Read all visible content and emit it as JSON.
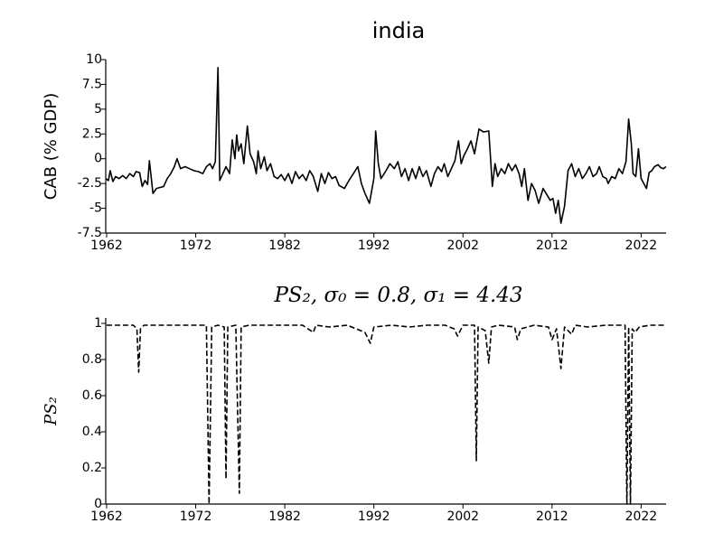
{
  "chart_data": [
    {
      "type": "line",
      "title": "india",
      "ylabel": "CAB (% GDP)",
      "color": "#000000",
      "linestyle": "solid",
      "x": [
        1961.9,
        1962.2,
        1962.4,
        1962.7,
        1963.0,
        1963.4,
        1963.8,
        1964.2,
        1964.6,
        1965.0,
        1965.3,
        1965.7,
        1966.0,
        1966.3,
        1966.6,
        1966.8,
        1967.2,
        1967.6,
        1968.0,
        1968.4,
        1968.8,
        1969.2,
        1969.6,
        1969.9,
        1970.3,
        1970.8,
        1971.3,
        1971.8,
        1972.3,
        1972.8,
        1973.2,
        1973.6,
        1973.9,
        1974.2,
        1974.5,
        1974.7,
        1975.0,
        1975.4,
        1975.8,
        1976.1,
        1976.4,
        1976.6,
        1976.8,
        1977.1,
        1977.4,
        1977.8,
        1978.1,
        1978.5,
        1978.8,
        1979.0,
        1979.3,
        1979.7,
        1980.0,
        1980.4,
        1980.8,
        1981.2,
        1981.6,
        1982.0,
        1982.4,
        1982.8,
        1983.2,
        1983.6,
        1984.0,
        1984.4,
        1984.8,
        1985.2,
        1985.7,
        1986.1,
        1986.5,
        1986.9,
        1987.3,
        1987.7,
        1988.1,
        1988.7,
        1989.2,
        1989.7,
        1990.2,
        1990.6,
        1991.0,
        1991.5,
        1992.0,
        1992.2,
        1992.5,
        1992.8,
        1993.3,
        1993.8,
        1994.3,
        1994.7,
        1995.1,
        1995.5,
        1995.9,
        1996.3,
        1996.7,
        1997.1,
        1997.5,
        1997.9,
        1998.4,
        1998.8,
        1999.2,
        1999.6,
        1999.9,
        2000.3,
        2000.7,
        2001.1,
        2001.5,
        2001.8,
        2002.1,
        2002.5,
        2002.9,
        2003.3,
        2003.8,
        2004.3,
        2004.9,
        2005.3,
        2005.6,
        2005.9,
        2006.3,
        2006.7,
        2007.1,
        2007.5,
        2007.9,
        2008.3,
        2008.6,
        2008.9,
        2009.3,
        2009.7,
        2010.1,
        2010.5,
        2011.0,
        2011.4,
        2011.8,
        2012.1,
        2012.4,
        2012.7,
        2013.0,
        2013.4,
        2013.8,
        2014.2,
        2014.6,
        2015.0,
        2015.4,
        2015.8,
        2016.2,
        2016.6,
        2017.0,
        2017.3,
        2017.7,
        2018.1,
        2018.3,
        2018.7,
        2019.1,
        2019.5,
        2019.9,
        2020.3,
        2020.6,
        2020.9,
        2021.1,
        2021.4,
        2021.7,
        2022.0,
        2022.3,
        2022.6,
        2022.9,
        2023.2,
        2023.5,
        2023.9,
        2024.2,
        2024.5,
        2024.8
      ],
      "values": [
        -2.0,
        -2.2,
        -1.2,
        -2.3,
        -1.8,
        -2.0,
        -1.7,
        -2.0,
        -1.5,
        -1.8,
        -1.3,
        -1.4,
        -2.8,
        -2.2,
        -2.6,
        -0.2,
        -3.5,
        -3.0,
        -2.9,
        -2.8,
        -2.0,
        -1.5,
        -0.8,
        0.0,
        -1.0,
        -0.8,
        -1.0,
        -1.2,
        -1.3,
        -1.5,
        -0.8,
        -0.5,
        -1.0,
        -0.3,
        9.2,
        -2.2,
        -1.6,
        -0.8,
        -1.5,
        1.9,
        0.0,
        2.4,
        0.8,
        1.5,
        -0.5,
        3.3,
        0.5,
        -0.3,
        -1.5,
        0.8,
        -1.0,
        0.2,
        -1.2,
        -0.5,
        -1.8,
        -2.0,
        -1.6,
        -2.2,
        -1.5,
        -2.5,
        -1.3,
        -2.0,
        -1.6,
        -2.2,
        -1.2,
        -1.8,
        -3.3,
        -1.5,
        -2.5,
        -1.4,
        -2.0,
        -1.8,
        -2.7,
        -3.0,
        -2.2,
        -1.5,
        -0.8,
        -2.5,
        -3.5,
        -4.5,
        -2.0,
        2.8,
        -0.5,
        -2.0,
        -1.3,
        -0.5,
        -1.0,
        -0.3,
        -1.8,
        -1.0,
        -2.2,
        -1.0,
        -2.0,
        -0.8,
        -1.8,
        -1.2,
        -2.8,
        -1.5,
        -0.8,
        -1.3,
        -0.5,
        -1.8,
        -1.0,
        -0.2,
        1.8,
        -0.5,
        0.3,
        1.0,
        1.8,
        0.5,
        3.0,
        2.7,
        2.8,
        -2.8,
        -0.5,
        -1.8,
        -1.0,
        -1.5,
        -0.5,
        -1.2,
        -0.6,
        -1.5,
        -2.8,
        -1.0,
        -4.2,
        -2.5,
        -3.2,
        -4.5,
        -3.0,
        -3.6,
        -4.2,
        -4.0,
        -5.5,
        -4.2,
        -6.5,
        -4.8,
        -1.2,
        -0.5,
        -1.8,
        -1.0,
        -2.0,
        -1.5,
        -0.8,
        -1.8,
        -1.5,
        -0.8,
        -1.8,
        -2.0,
        -2.5,
        -1.8,
        -2.0,
        -1.0,
        -1.5,
        -0.3,
        4.0,
        1.5,
        -1.5,
        -1.8,
        1.0,
        -2.0,
        -2.5,
        -3.0,
        -1.4,
        -1.2,
        -0.8,
        -0.6,
        -0.9,
        -1.0,
        -0.8
      ],
      "xlim": [
        1961.9,
        2024.8
      ],
      "ylim": [
        -7.5,
        10
      ],
      "xticks": [
        1962,
        1972,
        1982,
        1992,
        2002,
        2012,
        2022
      ],
      "yticks": [
        -7.5,
        -5,
        -2.5,
        0,
        2.5,
        5,
        7.5,
        10
      ]
    },
    {
      "type": "line",
      "title": "PS₂, σ₀ = 0.8, σ₁ = 4.43",
      "ylabel": "PS₂",
      "color": "#000000",
      "linestyle": "dashed",
      "x": [
        1962.0,
        1963.0,
        1964.0,
        1965.0,
        1965.4,
        1965.6,
        1965.8,
        1966.2,
        1968.0,
        1970.0,
        1972.0,
        1973.2,
        1973.5,
        1973.8,
        1974.5,
        1975.2,
        1975.4,
        1975.6,
        1976.5,
        1976.9,
        1977.1,
        1978.0,
        1980.0,
        1982.0,
        1984.0,
        1985.2,
        1985.5,
        1987.0,
        1989.0,
        1991.0,
        1991.6,
        1992.0,
        1994.0,
        1996.0,
        1998.0,
        2000.0,
        2001.0,
        2001.4,
        2002.0,
        2003.3,
        2003.5,
        2003.7,
        2004.5,
        2004.9,
        2005.2,
        2006.0,
        2007.8,
        2008.1,
        2008.5,
        2010.0,
        2011.6,
        2012.0,
        2012.5,
        2013.0,
        2013.4,
        2014.2,
        2014.6,
        2016.0,
        2018.0,
        2020.2,
        2020.4,
        2020.6,
        2020.8,
        2021.0,
        2021.3,
        2021.8,
        2023.0,
        2024.8
      ],
      "values": [
        0.99,
        0.99,
        0.99,
        0.99,
        0.97,
        0.73,
        0.97,
        0.99,
        0.99,
        0.99,
        0.99,
        0.99,
        0.0,
        0.98,
        0.99,
        0.98,
        0.14,
        0.98,
        0.99,
        0.06,
        0.98,
        0.99,
        0.99,
        0.99,
        0.99,
        0.95,
        0.99,
        0.98,
        0.99,
        0.95,
        0.89,
        0.98,
        0.99,
        0.98,
        0.99,
        0.99,
        0.97,
        0.93,
        0.99,
        0.99,
        0.24,
        0.98,
        0.96,
        0.78,
        0.98,
        0.99,
        0.98,
        0.91,
        0.97,
        0.99,
        0.98,
        0.91,
        0.97,
        0.75,
        0.98,
        0.94,
        0.99,
        0.98,
        0.99,
        0.99,
        0.0,
        0.98,
        0.0,
        0.97,
        0.95,
        0.98,
        0.99,
        0.99
      ],
      "xlim": [
        1961.9,
        2024.8
      ],
      "ylim": [
        0,
        1.03
      ],
      "xticks": [
        1962,
        1972,
        1982,
        1992,
        2002,
        2012,
        2022
      ],
      "yticks": [
        0,
        0.2,
        0.4,
        0.6,
        0.8,
        1
      ]
    }
  ]
}
